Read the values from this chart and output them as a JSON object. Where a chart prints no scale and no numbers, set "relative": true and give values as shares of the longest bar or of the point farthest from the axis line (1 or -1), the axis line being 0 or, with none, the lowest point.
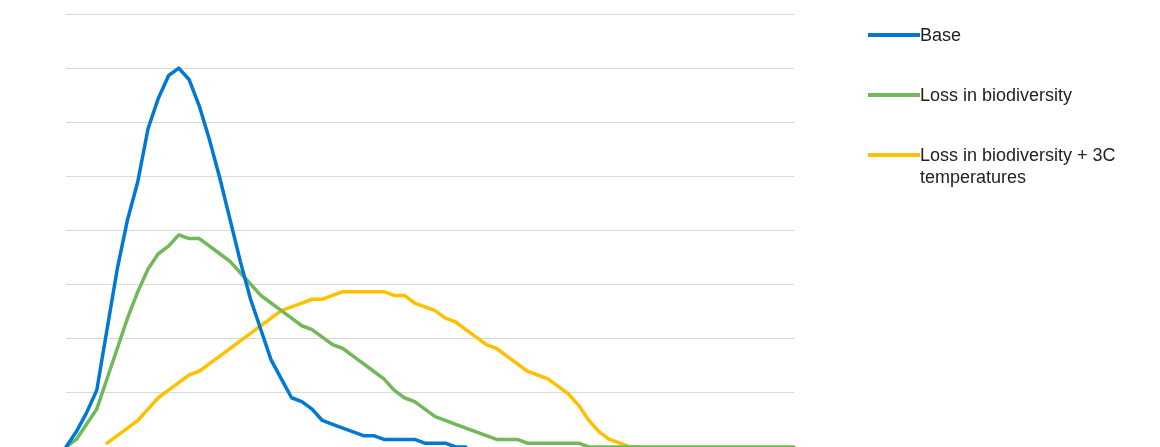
{
  "chart_data": {
    "type": "line",
    "relative": true,
    "grid": "y",
    "legend": "right",
    "tick_labels": false,
    "marker": "none",
    "line_style": "solid",
    "categories": [
      null,
      null,
      null,
      null,
      null,
      null,
      null,
      null,
      null,
      null,
      null,
      null,
      null,
      null,
      null,
      null,
      null,
      null,
      null,
      null,
      null,
      null,
      null,
      null,
      null,
      null,
      null,
      null,
      null,
      null,
      null,
      null,
      null,
      null,
      null,
      null,
      null,
      null,
      null,
      null,
      null,
      null,
      null,
      null,
      null,
      null,
      null,
      null,
      null,
      null,
      null,
      null,
      null,
      null,
      null,
      null,
      null,
      null,
      null,
      null,
      null,
      null,
      null,
      null,
      null,
      null,
      null,
      null,
      null,
      null,
      null,
      null
    ],
    "series": [
      {
        "name": "Base",
        "color": "#0078d4",
        "values": [
          0,
          0.04,
          0.09,
          0.15,
          0.31,
          0.47,
          0.6,
          0.7,
          0.84,
          0.92,
          0.98,
          1,
          0.97,
          0.9,
          0.81,
          0.71,
          0.6,
          0.49,
          0.39,
          0.31,
          0.23,
          0.18,
          0.13,
          0.12,
          0.1,
          0.07,
          0.06,
          0.05,
          0.04,
          0.03,
          0.03,
          0.02,
          0.02,
          0.02,
          0.02,
          0.01,
          0.01,
          0.01,
          0,
          0,
          null,
          null,
          null,
          null,
          null,
          null,
          null,
          null,
          null,
          null,
          null,
          null,
          null,
          null,
          null,
          null,
          null,
          null,
          null,
          null,
          null,
          null,
          null,
          null,
          null,
          null,
          null,
          null,
          null,
          null,
          null,
          null
        ]
      },
      {
        "name": "Loss in biodiversity",
        "color": "#70b85a",
        "values": [
          0,
          0.02,
          0.06,
          0.1,
          0.18,
          0.26,
          0.34,
          0.41,
          0.47,
          0.51,
          0.53,
          0.56,
          0.55,
          0.55,
          0.53,
          0.51,
          0.49,
          0.46,
          0.43,
          0.4,
          0.38,
          0.36,
          0.34,
          0.32,
          0.31,
          0.29,
          0.27,
          0.26,
          0.24,
          0.22,
          0.2,
          0.18,
          0.15,
          0.13,
          0.12,
          0.1,
          0.08,
          0.07,
          0.06,
          0.05,
          0.04,
          0.03,
          0.02,
          0.02,
          0.02,
          0.01,
          0.01,
          0.01,
          0.01,
          0.01,
          0.01,
          0,
          0,
          0,
          0,
          0,
          0,
          0,
          0,
          0,
          0,
          0,
          0,
          0,
          0,
          0,
          0,
          0,
          0,
          0,
          0,
          0
        ]
      },
      {
        "name": "Loss in biodiversity + 3C temperatures",
        "color": "#ffc000",
        "values": [
          null,
          null,
          null,
          null,
          0.01,
          0.03,
          0.05,
          0.07,
          0.1,
          0.13,
          0.15,
          0.17,
          0.19,
          0.2,
          0.22,
          0.24,
          0.26,
          0.28,
          0.3,
          0.32,
          0.34,
          0.36,
          0.37,
          0.38,
          0.39,
          0.39,
          0.4,
          0.41,
          0.41,
          0.41,
          0.41,
          0.41,
          0.4,
          0.4,
          0.38,
          0.37,
          0.36,
          0.34,
          0.33,
          0.31,
          0.29,
          0.27,
          0.26,
          0.24,
          0.22,
          0.2,
          0.19,
          0.18,
          0.16,
          0.14,
          0.11,
          0.07,
          0.04,
          0.02,
          0.01,
          0,
          0,
          null,
          null,
          null,
          null,
          null,
          null,
          null,
          null,
          null,
          null,
          null,
          null,
          null,
          null,
          null
        ]
      }
    ]
  }
}
